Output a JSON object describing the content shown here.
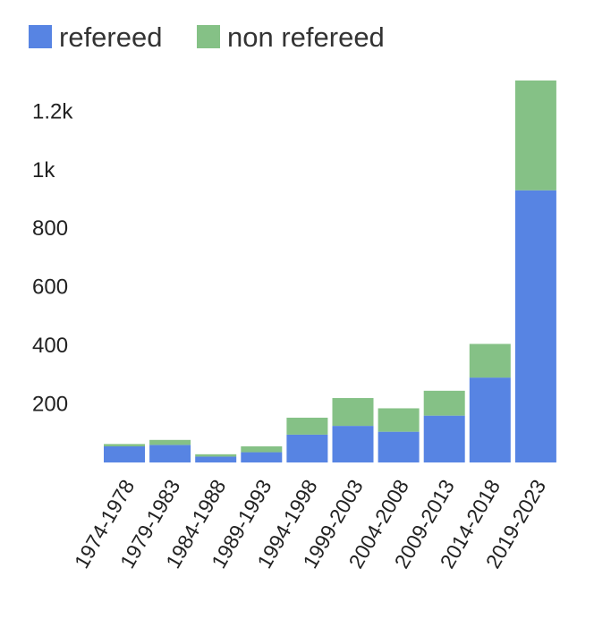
{
  "chart_data": {
    "type": "bar",
    "stacked": true,
    "categories": [
      "1974-1978",
      "1979-1983",
      "1984-1988",
      "1989-1993",
      "1994-1998",
      "1999-2003",
      "2004-2008",
      "2009-2013",
      "2014-2018",
      "2019-2023"
    ],
    "series": [
      {
        "name": "refereed",
        "color": "#5784e3",
        "values": [
          55,
          60,
          20,
          35,
          95,
          125,
          105,
          160,
          290,
          930
        ]
      },
      {
        "name": "non refereed",
        "color": "#85c186",
        "values": [
          8,
          17,
          8,
          20,
          58,
          95,
          80,
          85,
          115,
          375
        ]
      }
    ],
    "yticks": [
      {
        "value": 200,
        "label": "200"
      },
      {
        "value": 400,
        "label": "400"
      },
      {
        "value": 600,
        "label": "600"
      },
      {
        "value": 800,
        "label": "800"
      },
      {
        "value": 1000,
        "label": "1k"
      },
      {
        "value": 1200,
        "label": "1.2k"
      }
    ],
    "ylim": [
      0,
      1305
    ],
    "grid": false,
    "legend_position": "top-left",
    "title": "",
    "xlabel": "",
    "ylabel": ""
  }
}
